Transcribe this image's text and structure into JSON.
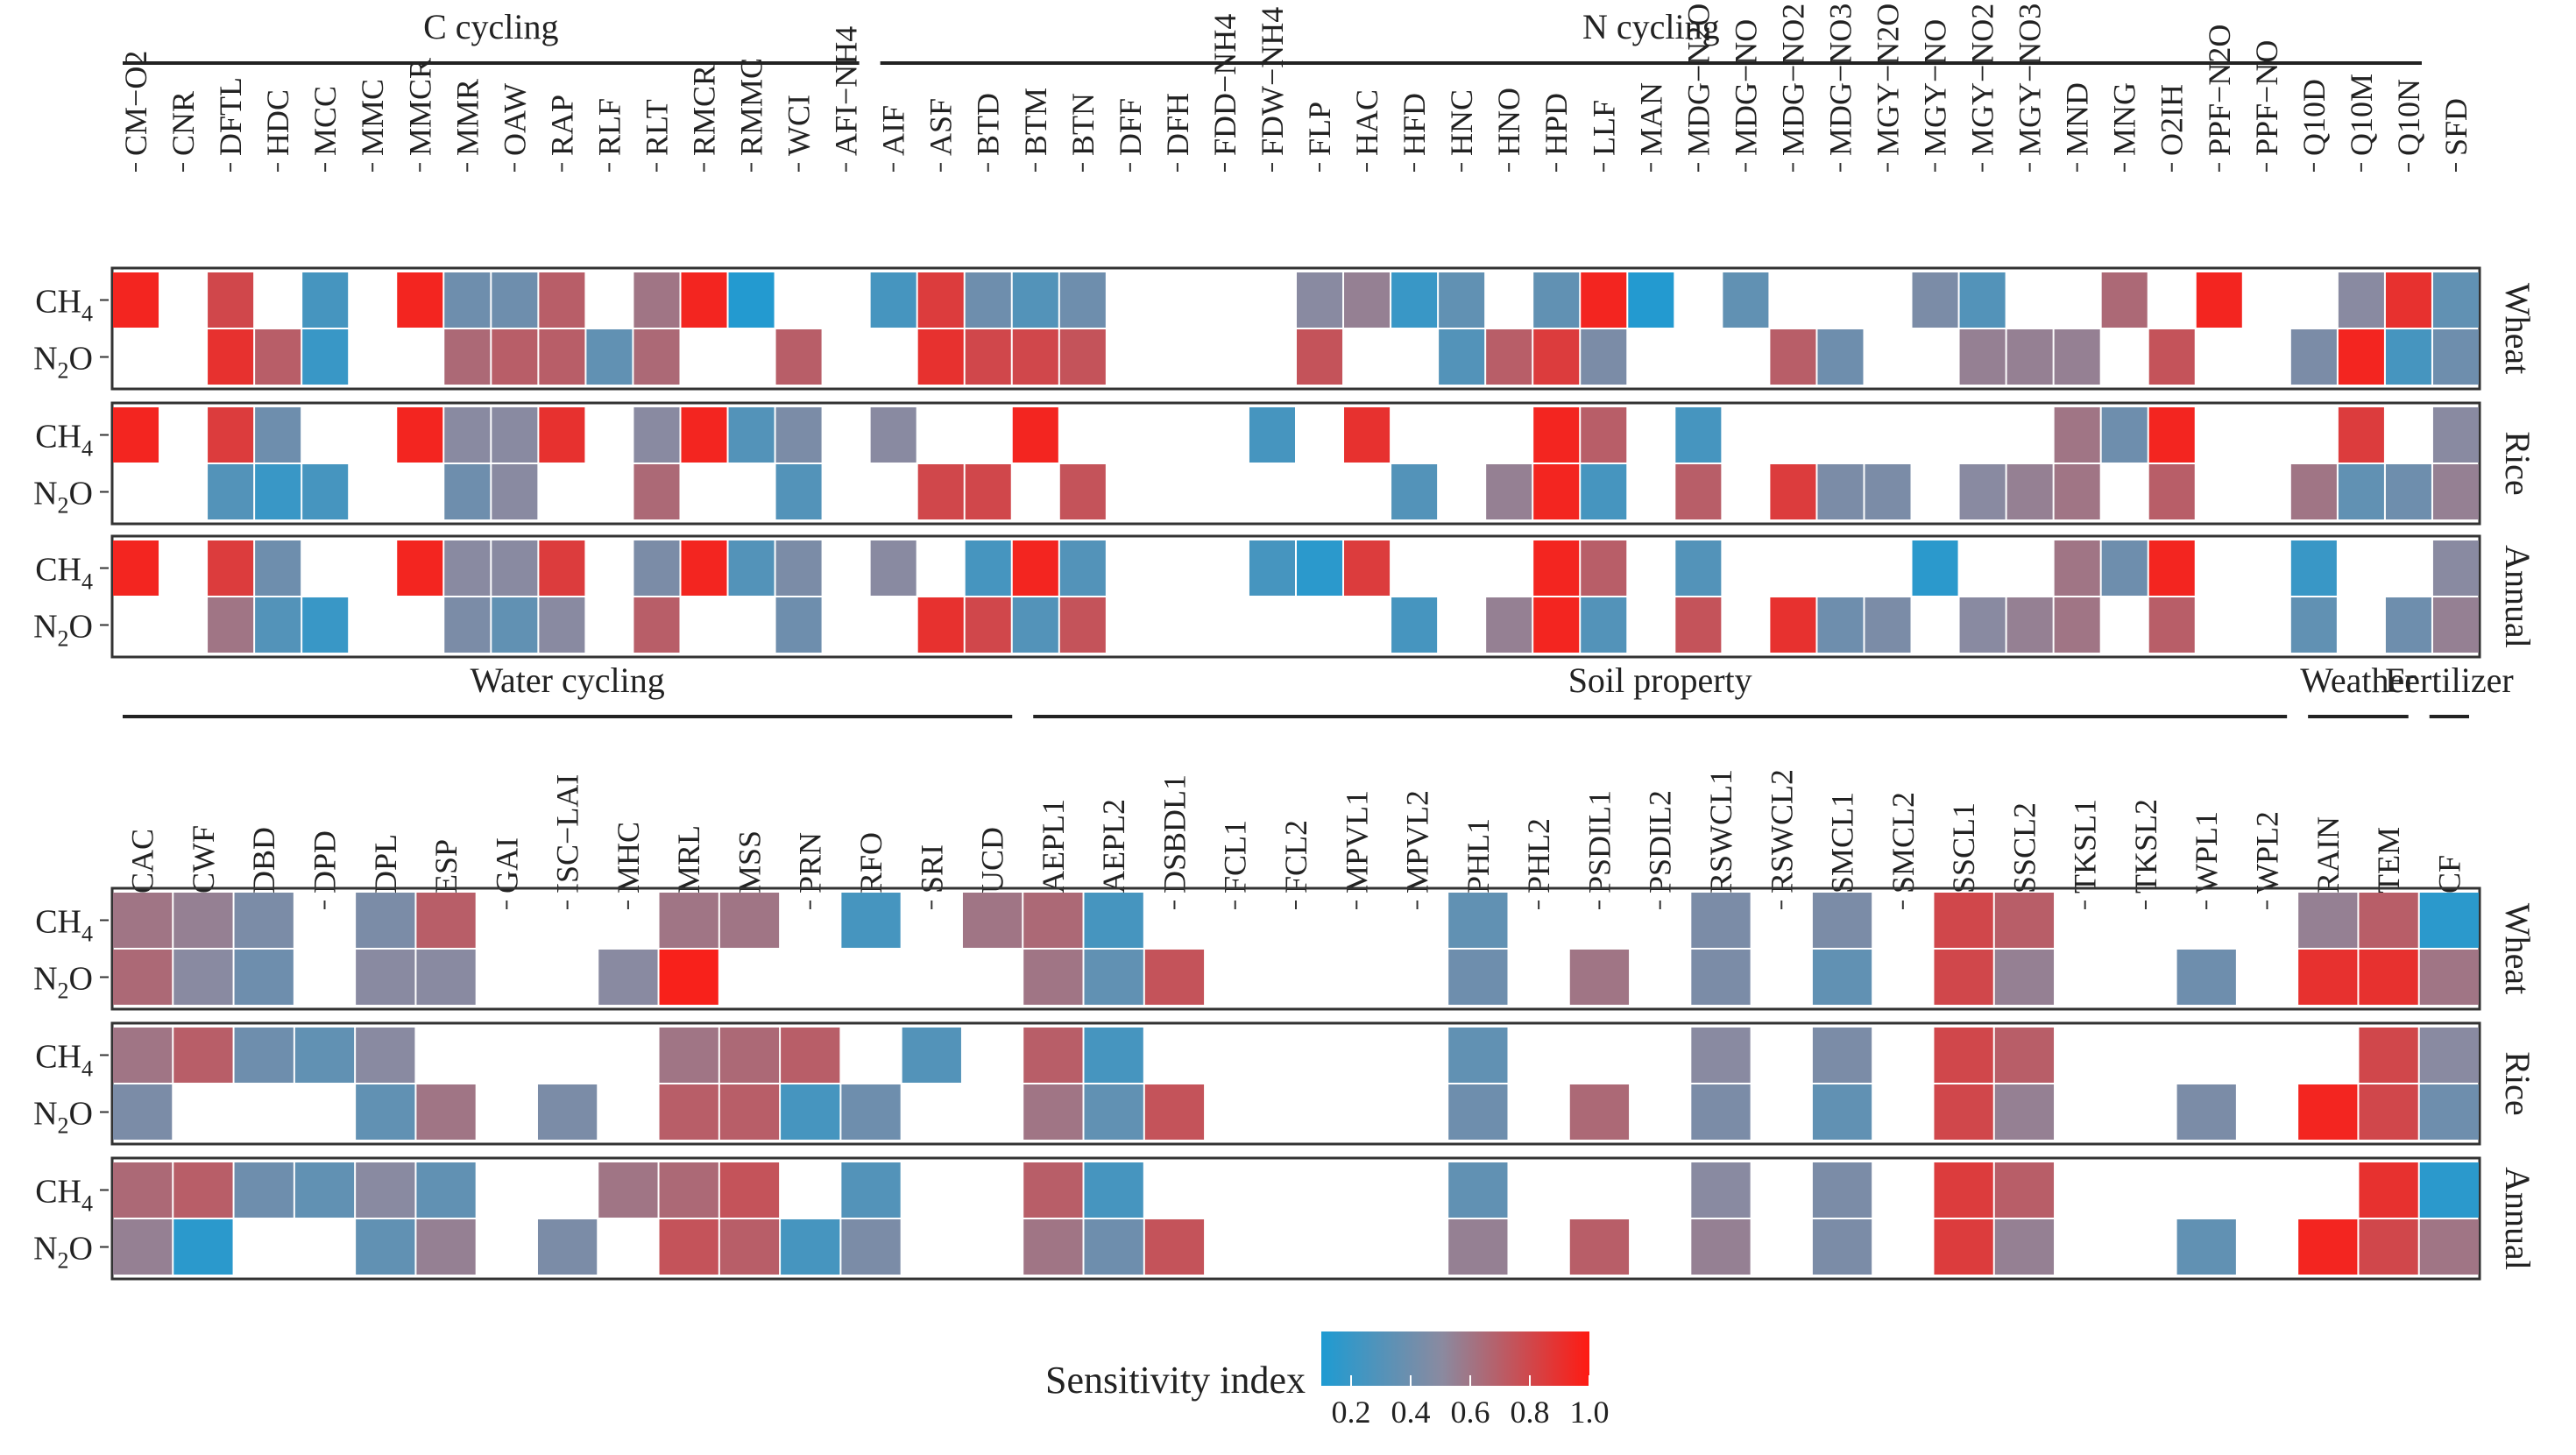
{
  "chart_data": {
    "type": "heatmap",
    "legend": {
      "title": "Sensitivity index",
      "ticks": [
        "0.2",
        "0.4",
        "0.6",
        "0.8",
        "1.0"
      ],
      "range": [
        0.1,
        1.0
      ],
      "colors": {
        "low": "#1e9bd2",
        "mid": "#8a8aa0",
        "high": "#ff1a12"
      }
    },
    "row_labels": [
      {
        "main": "CH",
        "sub": "4",
        "tail": ""
      },
      {
        "main": "N",
        "sub": "2",
        "tail": "O"
      }
    ],
    "panels": [
      {
        "groups": [
          {
            "label": "C cycling",
            "start": 0,
            "end": 15
          },
          {
            "label": "N cycling",
            "start": 16,
            "end": 48
          }
        ],
        "columns": [
          "CM−O2",
          "CNR",
          "DFTL",
          "HDC",
          "MCC",
          "MMC",
          "MMCR",
          "MMR",
          "OAW",
          "RAP",
          "RLF",
          "RLT",
          "RMCR",
          "RMMC",
          "WCI",
          "AFI−NH4",
          "AIF",
          "ASF",
          "BTD",
          "BTM",
          "BTN",
          "DFF",
          "DFH",
          "FDD−NH4",
          "FDW−NH4",
          "FLP",
          "HAC",
          "HFD",
          "HNC",
          "HNO",
          "HPD",
          "LLF",
          "MAN",
          "MDG−N2O",
          "MDG−NO",
          "MDG−NO2",
          "MDG−NO3",
          "MGY−N2O",
          "MGY−NO",
          "MGY−NO2",
          "MGY−NO3",
          "MND",
          "MNG",
          "O2IH",
          "PPF−N2O",
          "PPF−NO",
          "Q10D",
          "Q10M",
          "Q10N",
          "SFD"
        ],
        "facets": [
          {
            "label": "Wheat",
            "rows": [
              [
                0.95,
                null,
                0.8,
                null,
                0.25,
                null,
                0.95,
                0.4,
                0.4,
                0.7,
                null,
                0.6,
                0.95,
                0.12,
                null,
                null,
                0.25,
                0.85,
                0.4,
                0.3,
                0.4,
                null,
                null,
                null,
                null,
                0.5,
                0.55,
                0.2,
                0.35,
                null,
                0.35,
                0.95,
                0.12,
                null,
                0.35,
                null,
                null,
                null,
                0.45,
                0.3,
                null,
                null,
                0.65,
                null,
                0.95,
                null,
                null,
                0.5,
                0.9,
                0.35
              ],
              [
                null,
                null,
                0.9,
                0.7,
                0.2,
                null,
                null,
                0.65,
                0.7,
                0.7,
                0.35,
                0.65,
                null,
                null,
                0.7,
                null,
                null,
                0.9,
                0.8,
                0.8,
                0.75,
                null,
                null,
                null,
                null,
                0.75,
                null,
                null,
                0.3,
                0.7,
                0.85,
                0.45,
                null,
                null,
                null,
                0.7,
                0.4,
                null,
                null,
                0.55,
                0.55,
                0.55,
                null,
                0.75,
                null,
                null,
                0.45,
                0.95,
                0.25,
                0.4
              ]
            ]
          },
          {
            "label": "Rice",
            "rows": [
              [
                0.95,
                null,
                0.85,
                0.4,
                null,
                null,
                0.95,
                0.5,
                0.5,
                0.9,
                null,
                0.5,
                0.95,
                0.3,
                0.45,
                null,
                0.5,
                null,
                null,
                0.95,
                null,
                null,
                null,
                null,
                0.25,
                null,
                0.9,
                null,
                null,
                null,
                0.95,
                0.7,
                null,
                0.25,
                null,
                null,
                null,
                null,
                null,
                null,
                null,
                0.6,
                0.4,
                0.95,
                null,
                null,
                null,
                0.85,
                null,
                0.5
              ],
              [
                null,
                null,
                0.3,
                0.2,
                0.25,
                null,
                null,
                0.4,
                0.5,
                null,
                null,
                0.65,
                null,
                null,
                0.3,
                null,
                null,
                0.8,
                0.8,
                null,
                0.75,
                null,
                null,
                null,
                null,
                null,
                null,
                0.3,
                null,
                0.55,
                0.95,
                0.25,
                null,
                0.7,
                null,
                0.85,
                0.45,
                0.45,
                null,
                0.5,
                0.55,
                0.6,
                null,
                0.7,
                null,
                null,
                0.6,
                0.35,
                0.4,
                0.55
              ]
            ]
          },
          {
            "label": "Annual",
            "rows": [
              [
                0.95,
                null,
                0.85,
                0.4,
                null,
                null,
                0.95,
                0.5,
                0.5,
                0.85,
                null,
                0.45,
                0.95,
                0.3,
                0.45,
                null,
                0.5,
                null,
                0.25,
                0.95,
                0.3,
                null,
                null,
                null,
                0.25,
                0.15,
                0.85,
                null,
                null,
                null,
                0.95,
                0.7,
                null,
                0.3,
                null,
                null,
                null,
                null,
                0.15,
                null,
                null,
                0.6,
                0.4,
                0.95,
                null,
                null,
                0.2,
                null,
                null,
                0.5
              ],
              [
                null,
                null,
                0.6,
                0.3,
                0.2,
                null,
                null,
                0.45,
                0.35,
                0.5,
                null,
                0.7,
                null,
                null,
                0.4,
                null,
                null,
                0.9,
                0.8,
                0.3,
                0.75,
                null,
                null,
                null,
                null,
                null,
                null,
                0.25,
                null,
                0.55,
                0.95,
                0.3,
                null,
                0.75,
                null,
                0.9,
                0.4,
                0.45,
                null,
                0.5,
                0.55,
                0.6,
                null,
                0.7,
                null,
                null,
                0.35,
                null,
                0.4,
                0.55
              ]
            ]
          }
        ]
      },
      {
        "groups": [
          {
            "label": "Water cycling",
            "start": 0,
            "end": 14
          },
          {
            "label": "Soil property",
            "start": 15,
            "end": 35
          },
          {
            "label": "Weather",
            "start": 36,
            "end": 37
          },
          {
            "label": "Fertilizer",
            "start": 38,
            "end": 38
          }
        ],
        "columns": [
          "CAC",
          "CWF",
          "DBD",
          "DPD",
          "DPL",
          "ESP",
          "GAI",
          "ISC−LAI",
          "MHC",
          "MRL",
          "MSS",
          "PRN",
          "RFO",
          "SRI",
          "UCD",
          "AEPL1",
          "AEPL2",
          "DSBDL1",
          "FCL1",
          "FCL2",
          "MPVL1",
          "MPVL2",
          "PHL1",
          "PHL2",
          "PSDIL1",
          "PSDIL2",
          "RSWCL1",
          "RSWCL2",
          "SMCL1",
          "SMCL2",
          "SSCL1",
          "SSCL2",
          "TKSL1",
          "TKSL2",
          "WPL1",
          "WPL2",
          "RAIN",
          "TEM",
          "CF"
        ],
        "facets": [
          {
            "label": "Wheat",
            "rows": [
              [
                0.6,
                0.55,
                0.45,
                null,
                0.45,
                0.7,
                null,
                null,
                null,
                0.6,
                0.6,
                null,
                0.25,
                null,
                0.6,
                0.65,
                0.25,
                null,
                null,
                null,
                null,
                null,
                0.35,
                null,
                null,
                null,
                0.45,
                null,
                0.45,
                null,
                0.8,
                0.7,
                null,
                null,
                null,
                null,
                0.55,
                0.7,
                0.15
              ],
              [
                0.65,
                0.5,
                0.4,
                null,
                0.5,
                0.5,
                null,
                null,
                0.5,
                0.97,
                null,
                null,
                null,
                null,
                null,
                0.6,
                0.35,
                0.75,
                null,
                null,
                null,
                null,
                0.4,
                null,
                0.6,
                null,
                0.45,
                null,
                0.35,
                null,
                0.8,
                0.55,
                null,
                null,
                0.4,
                null,
                0.9,
                0.9,
                0.6
              ]
            ]
          },
          {
            "label": "Rice",
            "rows": [
              [
                0.6,
                0.7,
                0.4,
                0.35,
                0.5,
                null,
                null,
                null,
                null,
                0.6,
                0.65,
                0.7,
                null,
                0.3,
                null,
                0.7,
                0.25,
                null,
                null,
                null,
                null,
                null,
                0.35,
                null,
                null,
                null,
                0.5,
                null,
                0.45,
                null,
                0.8,
                0.7,
                null,
                null,
                null,
                null,
                null,
                0.8,
                0.5
              ],
              [
                0.45,
                null,
                null,
                null,
                0.35,
                0.6,
                null,
                0.45,
                null,
                0.7,
                0.7,
                0.25,
                0.4,
                null,
                null,
                0.6,
                0.35,
                0.75,
                null,
                null,
                null,
                null,
                0.4,
                null,
                0.65,
                null,
                0.45,
                null,
                0.35,
                null,
                0.8,
                0.55,
                null,
                null,
                0.45,
                null,
                0.95,
                0.8,
                0.4
              ]
            ]
          },
          {
            "label": "Annual",
            "rows": [
              [
                0.65,
                0.7,
                0.4,
                0.35,
                0.5,
                0.35,
                null,
                null,
                0.6,
                0.65,
                0.75,
                null,
                0.3,
                null,
                null,
                0.7,
                0.25,
                null,
                null,
                null,
                null,
                null,
                0.35,
                null,
                null,
                null,
                0.5,
                null,
                0.45,
                null,
                0.85,
                0.7,
                null,
                null,
                null,
                null,
                null,
                0.9,
                0.15
              ],
              [
                0.55,
                0.15,
                null,
                null,
                0.35,
                0.55,
                null,
                0.45,
                null,
                0.75,
                0.7,
                0.25,
                0.45,
                null,
                null,
                0.6,
                0.4,
                0.75,
                null,
                null,
                null,
                null,
                0.55,
                null,
                0.7,
                null,
                0.55,
                null,
                0.45,
                null,
                0.85,
                0.55,
                null,
                null,
                0.35,
                null,
                0.95,
                0.8,
                0.6
              ]
            ]
          }
        ]
      }
    ]
  }
}
